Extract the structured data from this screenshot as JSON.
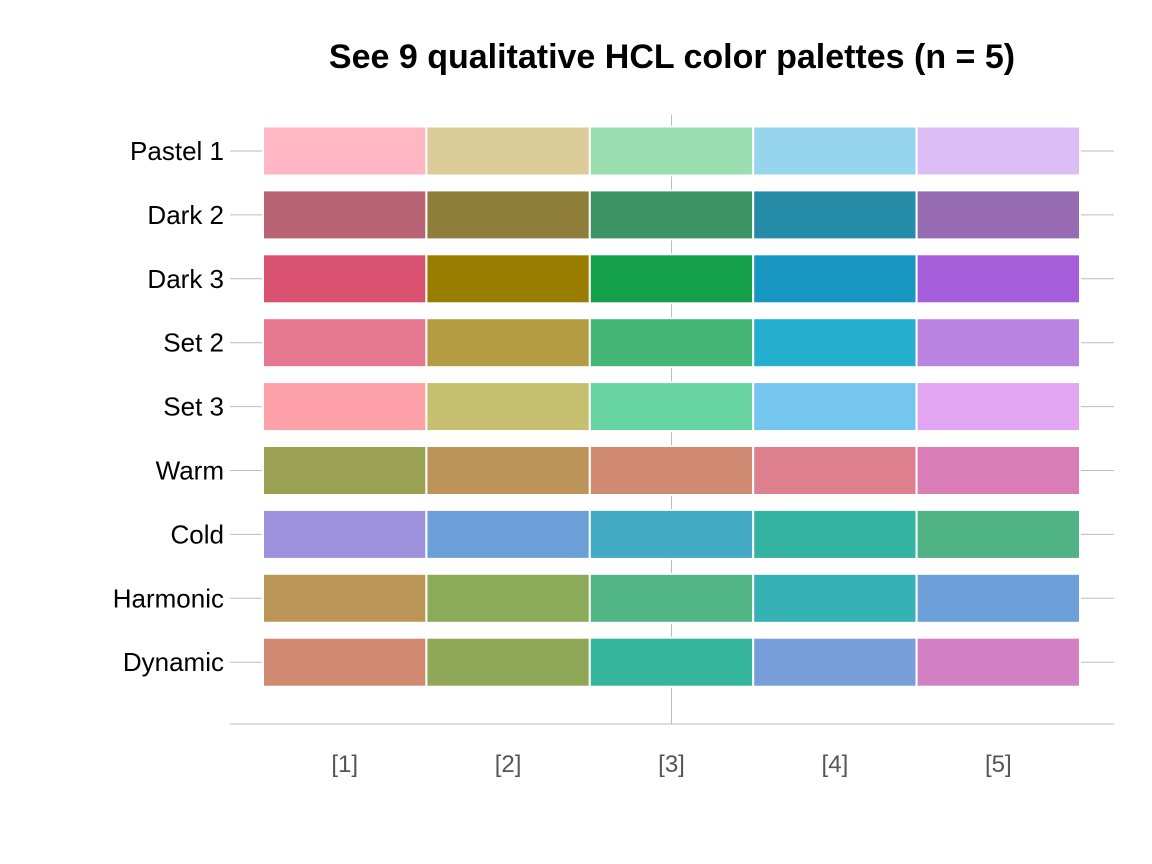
{
  "chart_data": {
    "type": "heatmap",
    "title": "See 9 qualitative HCL color palettes (n = 5)",
    "x_labels": [
      "[1]",
      "[2]",
      "[3]",
      "[4]",
      "[5]"
    ],
    "palettes": [
      {
        "name": "Pastel 1",
        "colors": [
          "#FFB6C5",
          "#DACB98",
          "#9BDEB0",
          "#96D5EC",
          "#DDBDF6"
        ]
      },
      {
        "name": "Dark 2",
        "colors": [
          "#B86474",
          "#8E7E3A",
          "#3C9464",
          "#258CA8",
          "#966BB4"
        ]
      },
      {
        "name": "Dark 3",
        "colors": [
          "#D95371",
          "#997D00",
          "#14A04B",
          "#1696C1",
          "#A65EDB"
        ]
      },
      {
        "name": "Set 2",
        "colors": [
          "#E6788F",
          "#B39C42",
          "#45B676",
          "#25AFCE",
          "#B983E2"
        ]
      },
      {
        "name": "Set 3",
        "colors": [
          "#FFA1A8",
          "#C6BF70",
          "#68D4A2",
          "#75C6EE",
          "#E2A5F2"
        ]
      },
      {
        "name": "Warm",
        "colors": [
          "#9BA152",
          "#BC9459",
          "#D08A71",
          "#DE7F8D",
          "#DA7CB5"
        ]
      },
      {
        "name": "Cold",
        "colors": [
          "#9D90DC",
          "#6C9FD7",
          "#42ABC3",
          "#34B2A2",
          "#50B383"
        ]
      },
      {
        "name": "Harmonic",
        "colors": [
          "#BC9659",
          "#8BAB5A",
          "#52B584",
          "#36B1B4",
          "#6DA0D8"
        ]
      },
      {
        "name": "Dynamic",
        "colors": [
          "#D08A71",
          "#8FA858",
          "#36B59D",
          "#779ED8",
          "#D27FC3"
        ]
      }
    ]
  }
}
